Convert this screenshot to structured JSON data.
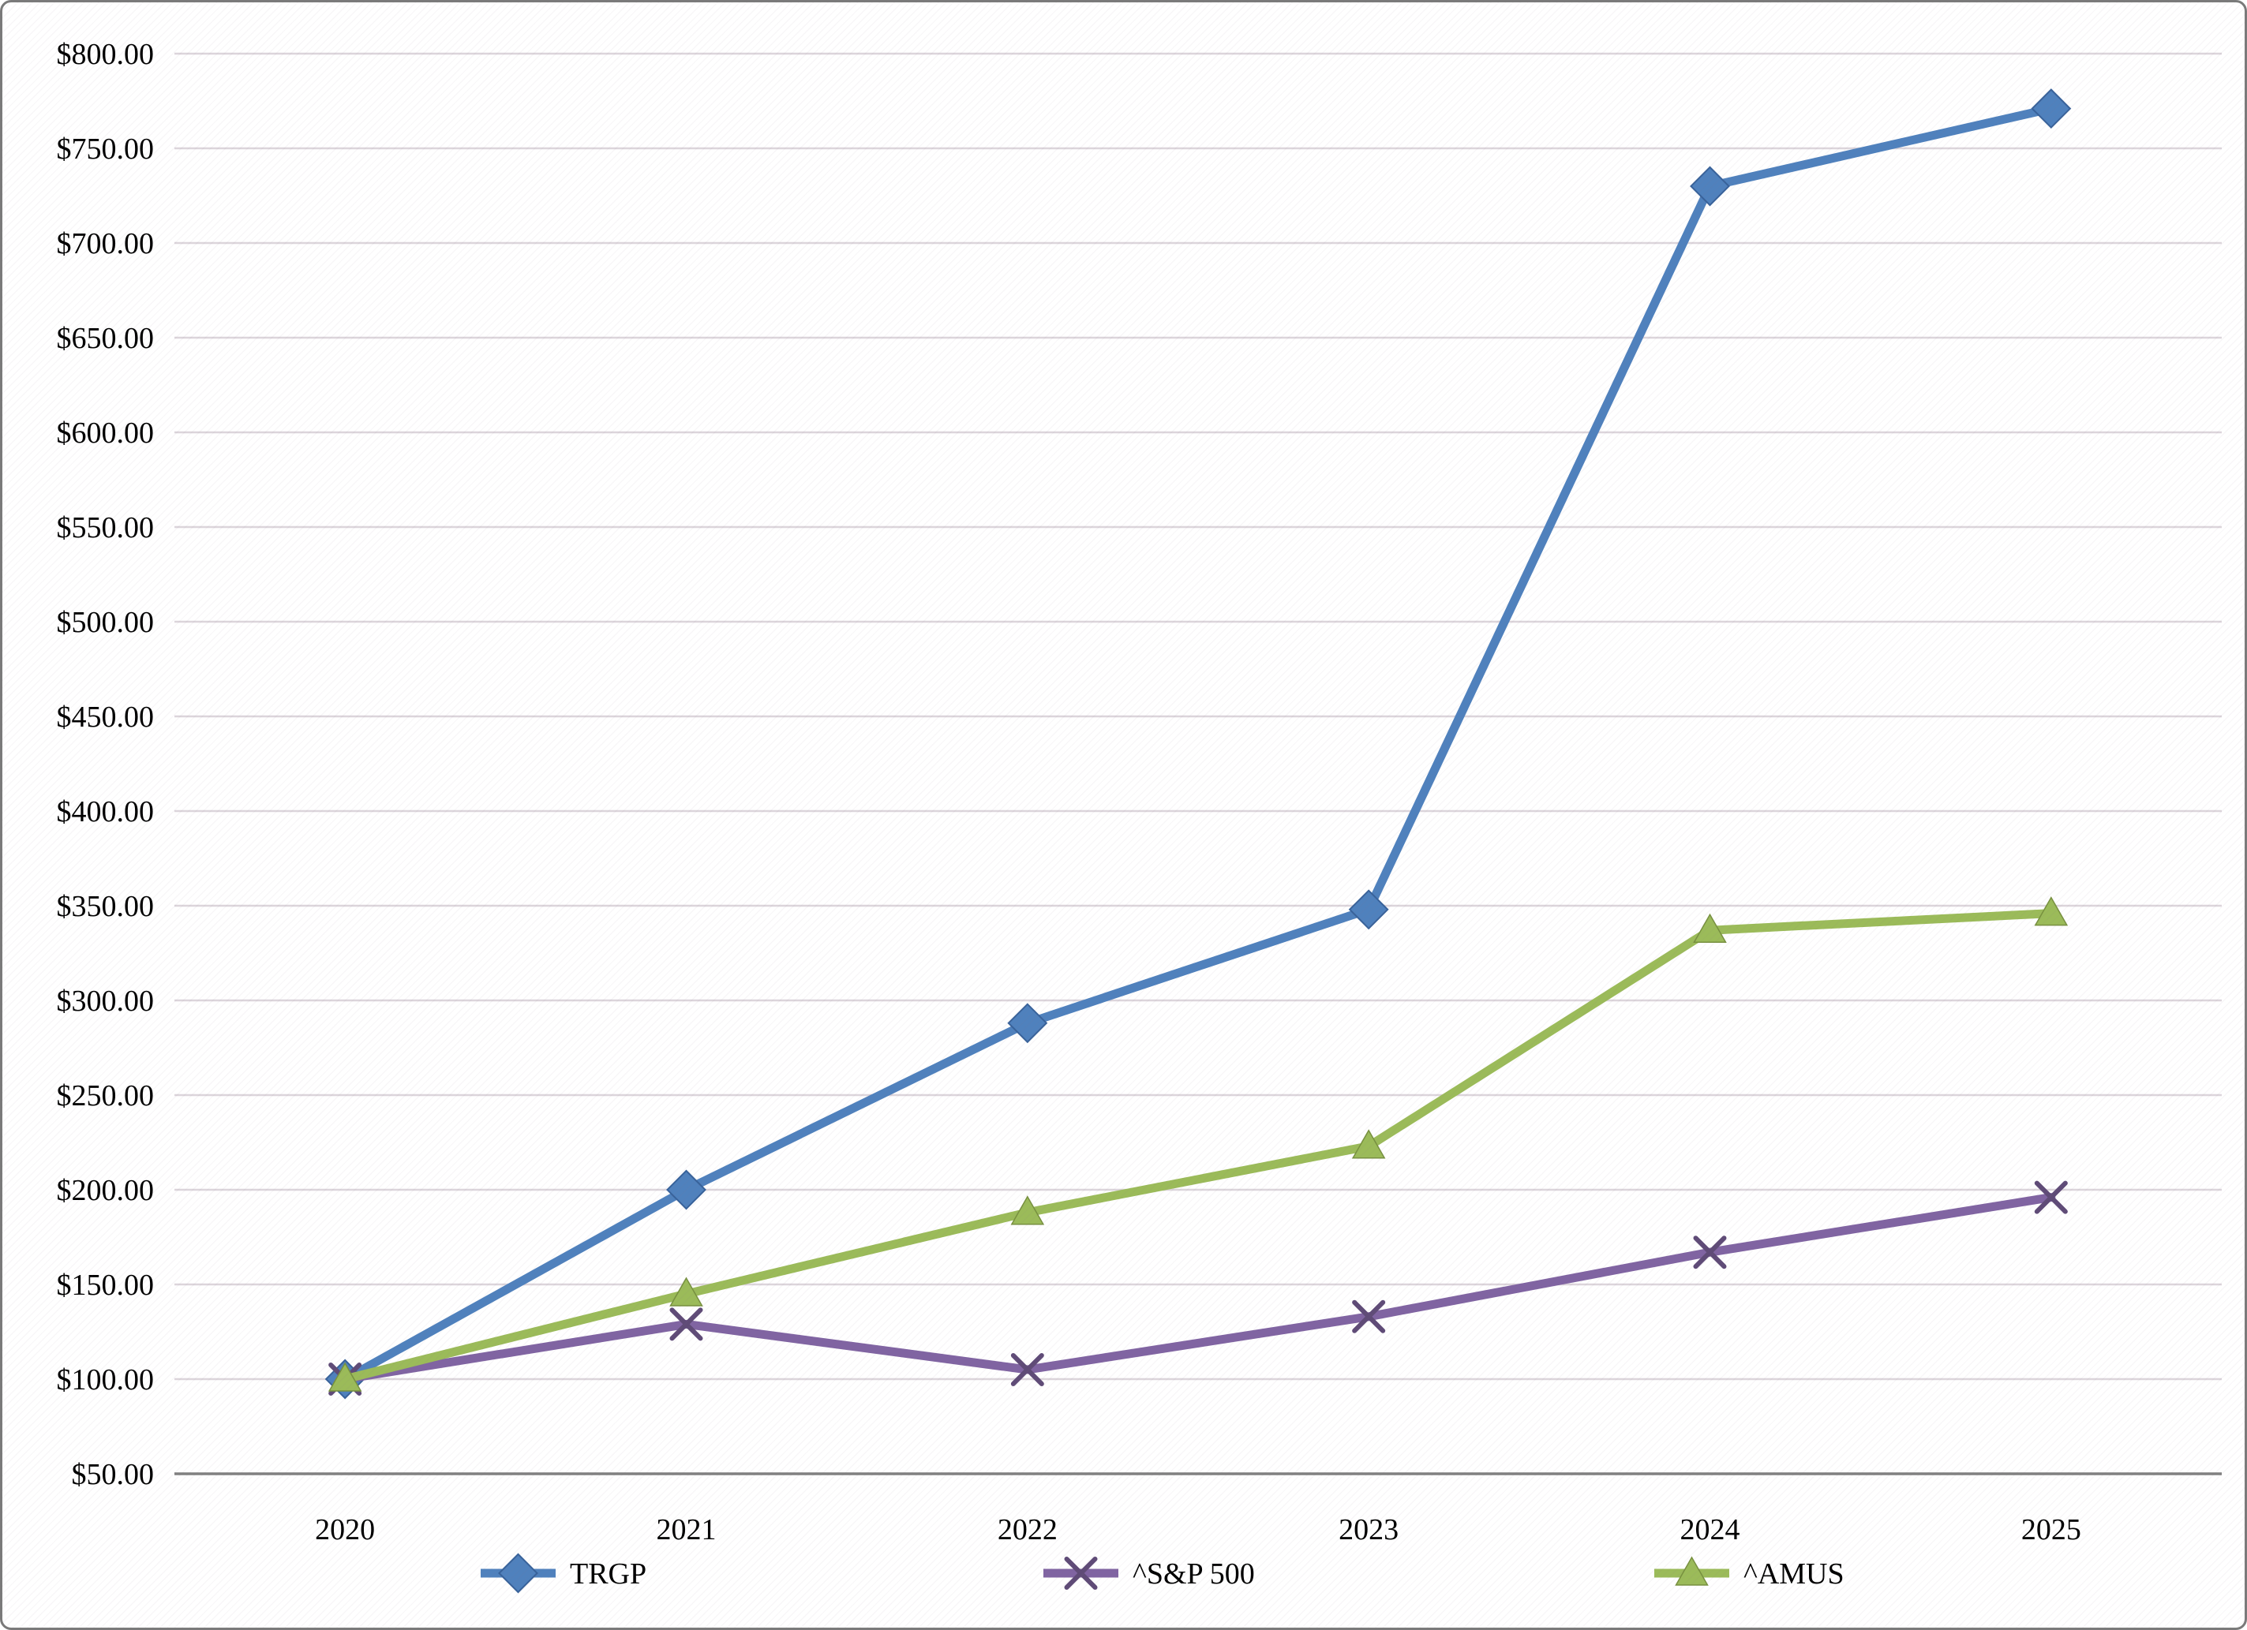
{
  "figure": {
    "background_color": "#FFFFFF",
    "frame_border_color": "#7A7A7A",
    "plot_texture": "faint-diagonal-hatch"
  },
  "chart_data": {
    "type": "line",
    "title": "",
    "xlabel": "",
    "ylabel": "",
    "categories": [
      "2020",
      "2021",
      "2022",
      "2023",
      "2024",
      "2025"
    ],
    "series": [
      {
        "name": "TRGP",
        "marker": "diamond",
        "color": "#4F81BD",
        "marker_edge": "#38629A",
        "values": [
          100,
          200,
          288,
          348,
          730,
          771
        ]
      },
      {
        "name": "^S&P 500",
        "marker": "x",
        "color": "#8064A2",
        "marker_edge": "#5F4B77",
        "values": [
          100,
          129,
          105,
          133,
          167,
          196
        ]
      },
      {
        "name": "^AMUS",
        "marker": "triangle",
        "color": "#9BBB59",
        "marker_edge": "#77903F",
        "values": [
          100,
          145,
          188,
          223,
          337,
          346
        ]
      }
    ],
    "ylim": [
      50,
      800
    ],
    "ytick_step": 50,
    "y_tick_labels": [
      "$50.00",
      "$100.00",
      "$150.00",
      "$200.00",
      "$250.00",
      "$300.00",
      "$350.00",
      "$400.00",
      "$450.00",
      "$500.00",
      "$550.00",
      "$600.00",
      "$650.00",
      "$700.00",
      "$750.00",
      "$800.00"
    ],
    "grid": "horizontal",
    "gridline_color": "#DCD5DB",
    "axis_line_color": "#808080",
    "legend": {
      "position": "bottom",
      "entries": [
        "TRGP",
        "^S&P 500",
        "^AMUS"
      ]
    }
  }
}
